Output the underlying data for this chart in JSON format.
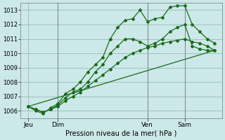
{
  "bg_color": "#cce8e8",
  "grid_color": "#99bbbb",
  "line_color": "#1a6b1a",
  "title": "Pression niveau de la mer( hPa )",
  "ylim": [
    1005.5,
    1013.5
  ],
  "yticks": [
    1006,
    1007,
    1008,
    1009,
    1010,
    1011,
    1012,
    1013
  ],
  "xlim": [
    0,
    108
  ],
  "day_positions": [
    4,
    20,
    68,
    88
  ],
  "day_labels": [
    "Jeu",
    "Dim",
    "Ven",
    "Sam"
  ],
  "vline_positions": [
    20,
    68,
    88
  ],
  "series1_x": [
    4,
    8,
    12,
    16,
    20,
    24,
    28,
    32,
    36,
    40,
    44,
    48,
    52,
    56,
    60,
    64,
    68,
    72,
    76,
    80,
    84,
    88,
    92,
    96,
    100,
    104
  ],
  "series1_y": [
    1006.3,
    1006.0,
    1005.8,
    1006.2,
    1006.5,
    1007.2,
    1007.5,
    1008.0,
    1008.7,
    1009.2,
    1009.7,
    1011.0,
    1011.8,
    1012.3,
    1012.4,
    1013.0,
    1012.2,
    1012.4,
    1012.5,
    1013.2,
    1013.3,
    1013.3,
    1012.0,
    1011.5,
    1011.0,
    1010.7
  ],
  "series2_x": [
    4,
    8,
    12,
    16,
    20,
    24,
    28,
    32,
    36,
    40,
    44,
    48,
    52,
    56,
    60,
    64,
    68,
    72,
    76,
    80,
    84,
    88,
    92,
    96,
    100,
    104
  ],
  "series2_y": [
    1006.3,
    1006.1,
    1005.9,
    1006.1,
    1006.4,
    1006.9,
    1007.3,
    1007.5,
    1008.0,
    1008.7,
    1009.2,
    1010.0,
    1010.5,
    1011.0,
    1011.0,
    1010.8,
    1010.5,
    1010.7,
    1011.0,
    1011.5,
    1011.8,
    1012.0,
    1010.5,
    1010.3,
    1010.2,
    1010.2
  ],
  "series3_x": [
    4,
    8,
    12,
    16,
    20,
    24,
    28,
    32,
    36,
    40,
    44,
    48,
    52,
    56,
    60,
    64,
    68,
    72,
    76,
    80,
    84,
    88,
    92,
    96,
    100,
    104
  ],
  "series3_y": [
    1006.3,
    1006.1,
    1005.9,
    1006.1,
    1006.3,
    1006.7,
    1007.0,
    1007.3,
    1007.7,
    1008.1,
    1008.5,
    1008.9,
    1009.3,
    1009.7,
    1010.0,
    1010.2,
    1010.4,
    1010.5,
    1010.7,
    1010.8,
    1010.9,
    1011.0,
    1010.8,
    1010.7,
    1010.5,
    1010.2
  ],
  "series4_x": [
    4,
    104
  ],
  "series4_y": [
    1006.3,
    1010.2
  ]
}
